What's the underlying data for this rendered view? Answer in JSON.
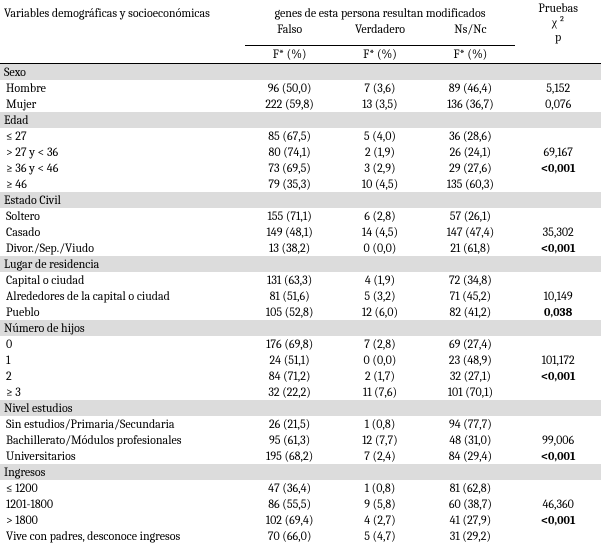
{
  "header": {
    "varTitle": "Variables demográficas y socioeconómicas",
    "groupTitle": "genes de esta persona resultan modificados",
    "cols": {
      "falso": "Falso",
      "verdadero": "Verdadero",
      "nsnc": "Ns/Nc"
    },
    "test": {
      "label1": "Pruebas",
      "label2": "χ ²",
      "label3": "p"
    },
    "fpct": {
      "f": "F* (%)",
      "v": "F* (%)",
      "n": "F* (%)"
    }
  },
  "sections": [
    {
      "title": "Sexo",
      "rows": [
        {
          "label": "Hombre",
          "f": "96 (50,0)",
          "v": "7 (3,6)",
          "n": "89 (46,4)",
          "p1": "5,152"
        },
        {
          "label": "Mujer",
          "f": "222 (59,8)",
          "v": "13 (3,5)",
          "n": "136 (36,7)",
          "p1": "0,076"
        }
      ]
    },
    {
      "title": "Edad",
      "rows": [
        {
          "label": "≤ 27",
          "f": "85 (67,5)",
          "v": "5 (4,0)",
          "n": "36 (28,6)",
          "p1": ""
        },
        {
          "label": "> 27 y < 36",
          "f": "80 (74,1)",
          "v": "2 (1,9)",
          "n": "26 (24,1)",
          "p1": "69,167"
        },
        {
          "label": "≥ 36 y < 46",
          "f": "73 (69,5)",
          "v": "3 (2,9)",
          "n": "29 (27,6)",
          "p1": "<0,001",
          "bold": true
        },
        {
          "label": "≥ 46",
          "f": "79 (35,3)",
          "v": "10 (4,5)",
          "n": "135 (60,3)",
          "p1": ""
        }
      ]
    },
    {
      "title": "Estado Civil",
      "rows": [
        {
          "label": "Soltero",
          "f": "155 (71,1)",
          "v": "6 (2,8)",
          "n": "57 (26,1)",
          "p1": ""
        },
        {
          "label": "Casado",
          "f": "149 (48,1)",
          "v": "14 (4,5)",
          "n": "147 (47,4)",
          "p1": "35,302"
        },
        {
          "label": "Divor./Sep./Viudo",
          "f": "13 (38,2)",
          "v": "0 (0,0)",
          "n": "21 (61,8)",
          "p1": "<0,001",
          "bold": true
        }
      ]
    },
    {
      "title": "Lugar de residencia",
      "rows": [
        {
          "label": "Capital o ciudad",
          "f": "131 (63,3)",
          "v": "4 (1,9)",
          "n": "72 (34,8)",
          "p1": ""
        },
        {
          "label": "Alrededores de la capital o ciudad",
          "f": "81 (51,6)",
          "v": "5 (3,2)",
          "n": "71 (45,2)",
          "p1": "10,149"
        },
        {
          "label": "Pueblo",
          "f": "105 (52,8)",
          "v": "12 (6,0)",
          "n": "82 (41,2)",
          "p1": "0,038",
          "bold": true
        }
      ]
    },
    {
      "title": "Número de hijos",
      "rows": [
        {
          "label": "0",
          "f": "176 (69,8)",
          "v": "7 (2,8)",
          "n": "69 (27,4)",
          "p1": ""
        },
        {
          "label": "1",
          "f": "24 (51,1)",
          "v": "0 (0,0)",
          "n": "23 (48,9)",
          "p1": "101,172"
        },
        {
          "label": "2",
          "f": "84 (71,2)",
          "v": "2 (1,7)",
          "n": "32 (27,1)",
          "p1": "<0,001",
          "bold": true
        },
        {
          "label": "≥ 3",
          "f": "32 (22,2)",
          "v": "11 (7,6)",
          "n": "101 (70,1)",
          "p1": ""
        }
      ]
    },
    {
      "title": "Nivel estudios",
      "rows": [
        {
          "label": "Sin estudios/Primaria/Secundaria",
          "f": "26 (21,5)",
          "v": "1 (0,8)",
          "n": "94 (77,7)",
          "p1": ""
        },
        {
          "label": "Bachillerato/Módulos profesionales",
          "f": "95 (61,3)",
          "v": "12 (7,7)",
          "n": "48 (31,0)",
          "p1": "99,006"
        },
        {
          "label": "Universitarios",
          "f": "195 (68,2)",
          "v": "7 (2,4)",
          "n": "84 (29,4)",
          "p1": "<0,001",
          "bold": true
        }
      ]
    },
    {
      "title": "Ingresos",
      "rows": [
        {
          "label": "≤ 1200",
          "f": "47 (36,4)",
          "v": "1 (0,8)",
          "n": "81 (62,8)",
          "p1": ""
        },
        {
          "label": "1201-1800",
          "f": "86 (55,5)",
          "v": "9 (5,8)",
          "n": "60 (38,7)",
          "p1": "46,360"
        },
        {
          "label": "> 1800",
          "f": "102 (69,4)",
          "v": "4 (2,7)",
          "n": "41 (27,9)",
          "p1": "<0,001",
          "bold": true
        },
        {
          "label": "Vive con padres, desconoce ingresos",
          "f": "70 (66,0)",
          "v": "5 (4,7)",
          "n": "31 (29,2)",
          "p1": ""
        }
      ]
    }
  ]
}
